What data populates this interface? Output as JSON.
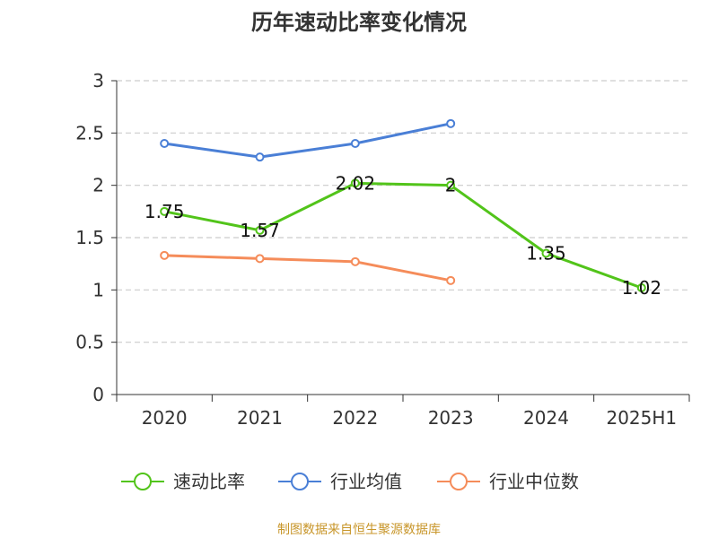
{
  "source_note": "制图数据来自恒生聚源数据库",
  "colors": {
    "series_0": "#52c41a",
    "series_1": "#4a7fd6",
    "series_2": "#f58c5a",
    "source": "#c8962a",
    "grid": "#cccccc",
    "axis": "#333333"
  },
  "chart_data": {
    "type": "line",
    "title": "历年速动比率变化情况",
    "xlabel": "",
    "ylabel": "",
    "categories": [
      "2020",
      "2021",
      "2022",
      "2023",
      "2024",
      "2025H1"
    ],
    "ylim": [
      0,
      3
    ],
    "yticks": [
      0,
      0.5,
      1,
      1.5,
      2,
      2.5,
      3
    ],
    "ytick_labels": [
      "0",
      "0.5",
      "1",
      "1.5",
      "2",
      "2.5",
      "3"
    ],
    "grid": true,
    "legend_position": "bottom",
    "series": [
      {
        "name": "速动比率",
        "values": [
          1.75,
          1.57,
          2.02,
          2.0,
          1.35,
          1.02
        ],
        "labels": [
          "1.75",
          "1.57",
          "2.02",
          "2",
          "1.35",
          "1.02"
        ]
      },
      {
        "name": "行业均值",
        "values": [
          2.4,
          2.27,
          2.4,
          2.59,
          null,
          null
        ]
      },
      {
        "name": "行业中位数",
        "values": [
          1.33,
          1.3,
          1.27,
          1.09,
          null,
          null
        ]
      }
    ]
  }
}
